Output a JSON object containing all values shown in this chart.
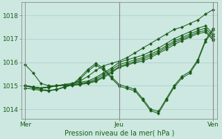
{
  "background_color": "#cce8e0",
  "plot_bg_color": "#cce8e0",
  "grid_color": "#aacccc",
  "line_color": "#1a5c1a",
  "marker_color": "#1a5c1a",
  "xlabel": "Pression niveau de la mer( hPa )",
  "yticks": [
    1014,
    1015,
    1016,
    1017,
    1018
  ],
  "xtick_labels": [
    "Mer",
    "Jeu",
    "Ven"
  ],
  "xtick_positions": [
    0,
    12,
    24
  ],
  "xlim": [
    -0.5,
    24.5
  ],
  "ylim": [
    1013.6,
    1018.55
  ],
  "series": [
    [
      1015.9,
      1015.55,
      1015.1,
      1015.0,
      1015.0,
      1015.05,
      1015.1,
      1015.2,
      1015.4,
      1015.65,
      1015.85,
      1015.95,
      1016.05,
      1016.2,
      1016.4,
      1016.6,
      1016.8,
      1017.0,
      1017.2,
      1017.4,
      1017.5,
      1017.65,
      1017.8,
      1018.05,
      1018.25
    ],
    [
      1015.0,
      1014.95,
      1014.9,
      1014.95,
      1015.0,
      1015.05,
      1015.1,
      1015.15,
      1015.2,
      1015.35,
      1015.55,
      1015.75,
      1016.0,
      1016.1,
      1016.2,
      1016.3,
      1016.45,
      1016.6,
      1016.8,
      1017.0,
      1017.15,
      1017.3,
      1017.45,
      1017.55,
      1017.2
    ],
    [
      1015.0,
      1014.95,
      1014.9,
      1014.95,
      1015.0,
      1015.02,
      1015.05,
      1015.1,
      1015.15,
      1015.28,
      1015.48,
      1015.68,
      1015.9,
      1016.0,
      1016.1,
      1016.2,
      1016.35,
      1016.5,
      1016.7,
      1016.9,
      1017.05,
      1017.2,
      1017.35,
      1017.45,
      1017.1
    ],
    [
      1015.0,
      1014.95,
      1014.9,
      1014.95,
      1015.0,
      1015.02,
      1015.03,
      1015.07,
      1015.12,
      1015.22,
      1015.4,
      1015.6,
      1015.82,
      1015.93,
      1016.03,
      1016.13,
      1016.28,
      1016.43,
      1016.63,
      1016.83,
      1016.98,
      1017.13,
      1017.28,
      1017.35,
      1017.0
    ],
    [
      1015.0,
      1014.95,
      1014.9,
      1014.92,
      1015.0,
      1015.02,
      1015.02,
      1015.05,
      1015.1,
      1015.18,
      1015.35,
      1015.55,
      1015.78,
      1015.88,
      1015.98,
      1016.05,
      1016.2,
      1016.38,
      1016.55,
      1016.75,
      1016.92,
      1017.07,
      1017.22,
      1017.28,
      1016.93
    ],
    [
      1015.0,
      1014.9,
      1014.85,
      1014.8,
      1014.85,
      1014.95,
      1015.05,
      1015.35,
      1015.7,
      1015.95,
      1015.75,
      1015.38,
      1015.05,
      1014.95,
      1014.85,
      1014.45,
      1014.0,
      1013.9,
      1014.45,
      1015.0,
      1015.4,
      1015.6,
      1016.1,
      1016.95,
      1017.45
    ],
    [
      1014.9,
      1014.85,
      1014.8,
      1014.78,
      1014.83,
      1014.93,
      1015.03,
      1015.28,
      1015.62,
      1015.88,
      1015.68,
      1015.32,
      1014.98,
      1014.88,
      1014.78,
      1014.38,
      1013.93,
      1013.82,
      1014.38,
      1014.93,
      1015.33,
      1015.53,
      1016.03,
      1016.88,
      1017.38
    ]
  ]
}
